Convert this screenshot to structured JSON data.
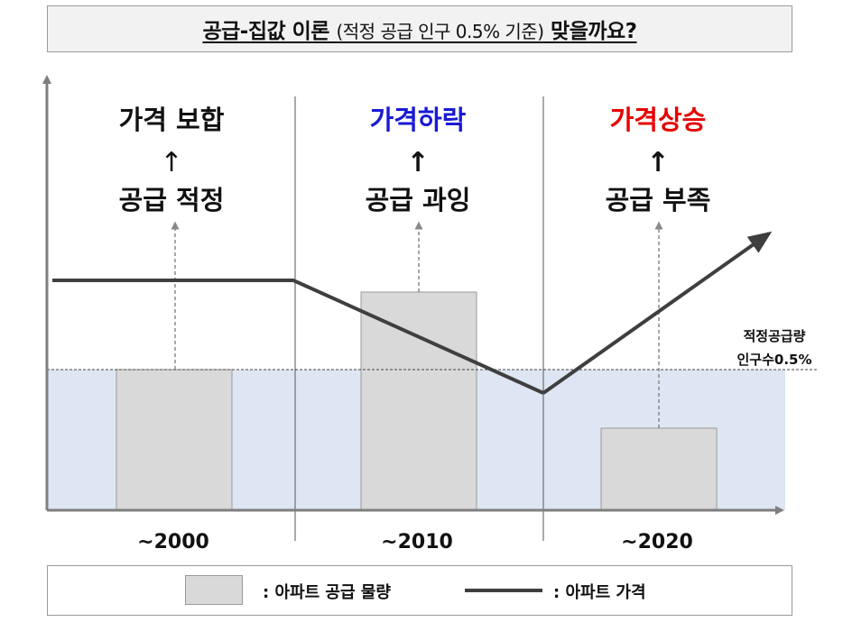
{
  "title": {
    "main": "공급-집값 이론",
    "sub": "(적정 공급 인구 0.5% 기준)",
    "tail": "맞을까요?"
  },
  "panels": [
    {
      "result": "가격 보합",
      "result_color": "#111111",
      "arrow": "↑",
      "cause": "공급 적정",
      "period": "~2000"
    },
    {
      "result": "가격하락",
      "result_color": "#1a1ad4",
      "arrow": "↑",
      "cause": "공급 과잉",
      "period": "~2010"
    },
    {
      "result": "가격상승",
      "result_color": "#e60000",
      "arrow": "↑",
      "cause": "공급 부족",
      "period": "~2020"
    }
  ],
  "threshold_label": {
    "line1": "적정공급량",
    "line2": "인구수0.5%"
  },
  "legend": {
    "supply": ": 아파트 공급 물량",
    "price": ": 아파트 가격"
  },
  "colors": {
    "bar_fill": "#d9d9d9",
    "band_fill": "#dde6f2",
    "price_line": "#3f3f3f",
    "axis": "#7f7f7f"
  }
}
